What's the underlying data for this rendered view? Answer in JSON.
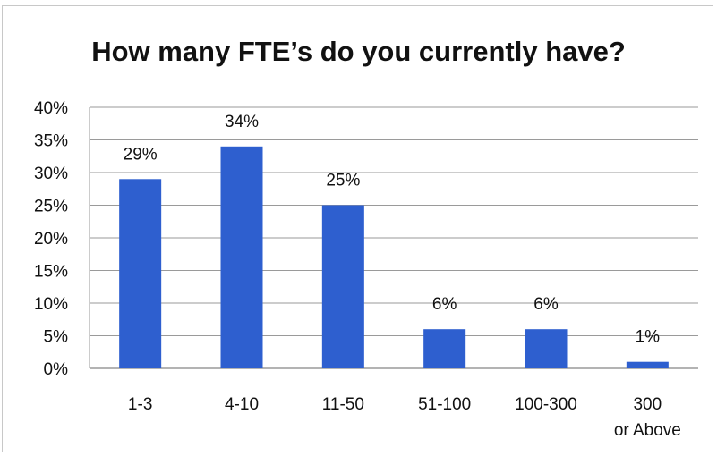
{
  "chart_data": {
    "type": "bar",
    "title": "How many FTE’s do you currently have?",
    "categories": [
      "1-3",
      "4-10",
      "11-50",
      "51-100",
      "100-300",
      "300 or Above"
    ],
    "values": [
      29,
      34,
      25,
      6,
      6,
      1
    ],
    "data_labels": [
      "29%",
      "34%",
      "25%",
      "6%",
      "6%",
      "1%"
    ],
    "y_ticks": [
      "0%",
      "5%",
      "10%",
      "15%",
      "20%",
      "25%",
      "30%",
      "35%",
      "40%"
    ],
    "ylim": [
      0,
      40
    ],
    "xlabel": "",
    "ylabel": "",
    "grid": true,
    "legend": "none",
    "bar_color": "#2e5fcf",
    "grid_color": "#9a9a9a"
  }
}
